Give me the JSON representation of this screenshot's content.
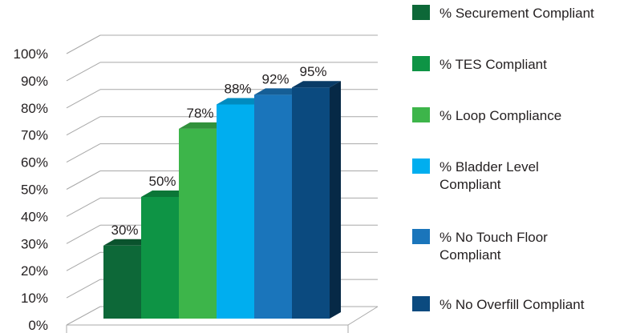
{
  "chart_data": {
    "type": "bar",
    "style": "3d",
    "categories": [
      "% Securement Compliant",
      "% TES Compliant",
      "% Loop Compliance",
      "% Bladder Level\nCompliant",
      "% No Touch Floor\nCompliant",
      "% No Overfill Compliant"
    ],
    "values": [
      30,
      50,
      78,
      88,
      92,
      95
    ],
    "data_labels": [
      "30%",
      "50%",
      "78%",
      "88%",
      "92%",
      "95%"
    ],
    "colors": [
      "#0d6838",
      "#0e9445",
      "#3db54a",
      "#00aeef",
      "#1a75bb",
      "#0b4a7f"
    ],
    "ylim": [
      0,
      100
    ],
    "yticks": [
      "0%",
      "10%",
      "20%",
      "30%",
      "40%",
      "50%",
      "60%",
      "70%",
      "80%",
      "90%",
      "100%"
    ],
    "grid": true,
    "legend_position": "right"
  }
}
